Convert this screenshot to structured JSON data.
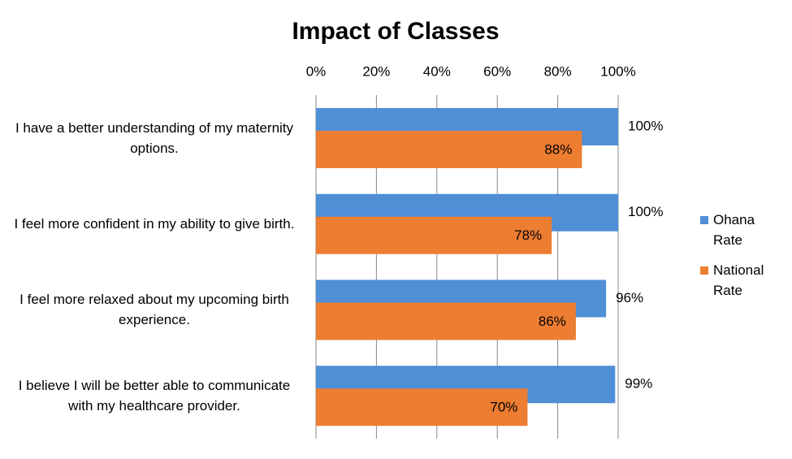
{
  "chart_data": {
    "type": "bar",
    "orientation": "horizontal",
    "title": "Impact of Classes",
    "categories": [
      "I have a better understanding of my maternity options.",
      "I feel more confident in my ability to give birth.",
      "I feel more relaxed about my upcoming birth experience.",
      "I believe I will be better able to communicate with my healthcare provider."
    ],
    "series": [
      {
        "name": "Ohana Rate",
        "color": "#4f8fd6",
        "values": [
          100,
          100,
          96,
          99
        ],
        "value_labels": [
          "100%",
          "100%",
          "96%",
          "99%"
        ]
      },
      {
        "name": "National Rate",
        "color": "#ed7d31",
        "values": [
          88,
          78,
          86,
          70
        ],
        "value_labels": [
          "88%",
          "78%",
          "86%",
          "70%"
        ]
      }
    ],
    "xlim": [
      0,
      100
    ],
    "xticks": [
      {
        "value": 0,
        "label": "0%"
      },
      {
        "value": 20,
        "label": "20%"
      },
      {
        "value": 40,
        "label": "40%"
      },
      {
        "value": 60,
        "label": "60%"
      },
      {
        "value": 80,
        "label": "80%"
      },
      {
        "value": 100,
        "label": "100%"
      }
    ],
    "grid": true,
    "legend": "right"
  }
}
